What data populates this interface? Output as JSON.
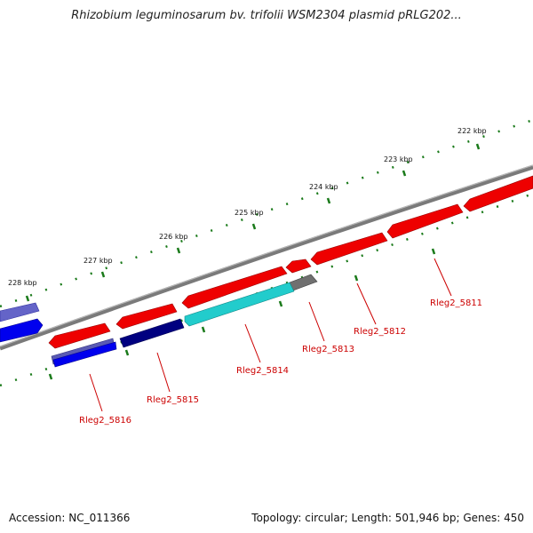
{
  "title": "Rhizobium leguminosarum bv. trifolii WSM2304 plasmid pRLG202...",
  "footer": {
    "accession": "Accession: NC_011366",
    "summary": "Topology: circular; Length: 501,946 bp; Genes: 450"
  },
  "colors": {
    "backbone": "#808080",
    "ticks": "#1a7a1a",
    "gene_label": "#cc0000",
    "red_feature": "#ee0000",
    "navy_feature": "#000080",
    "blue_feature": "#0000ee",
    "slate_feature": "#5a5ab4",
    "cyan_feature": "#22cccc",
    "gray_feature": "#707070"
  },
  "ticks": [
    "222 kbp",
    "223 kbp",
    "224 kbp",
    "225 kbp",
    "226 kbp",
    "227 kbp",
    "228 kbp"
  ],
  "gene_labels": [
    "Rleg2_5811",
    "Rleg2_5812",
    "Rleg2_5813",
    "Rleg2_5814",
    "Rleg2_5815",
    "Rleg2_5816"
  ]
}
